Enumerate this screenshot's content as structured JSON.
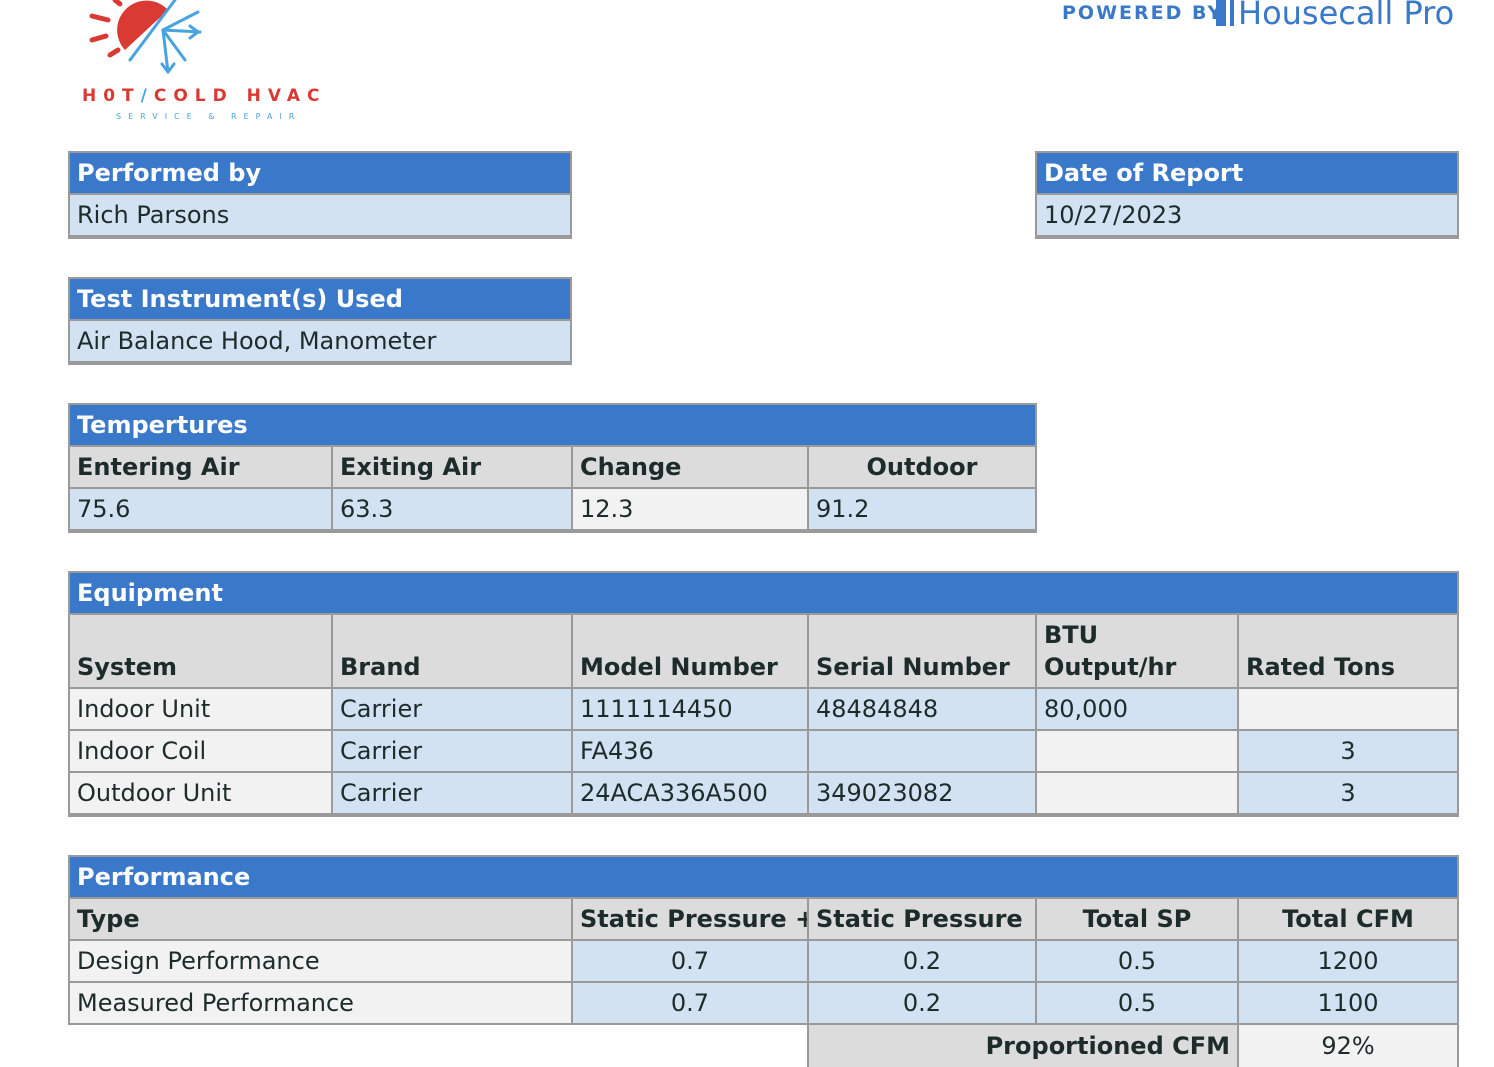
{
  "logo": {
    "name": "H0T/COLD HVAC",
    "name_a": "H0T",
    "slash": "/",
    "name_b": "COLD HVAC",
    "tagline": "SERVICE & REPAIR",
    "colors": {
      "hot": "#d93a33",
      "cold": "#4aa3e0"
    }
  },
  "powered": {
    "label": "POWERED BY",
    "brand": "Housecall Pro",
    "color": "#3a78c9"
  },
  "colors": {
    "header": "#3a78c9",
    "value": "#d3e2f2",
    "label": "#dcdcdc",
    "light": "#f2f2f2"
  },
  "performed_by": {
    "title": "Performed by",
    "value": "Rich Parsons"
  },
  "date_of_report": {
    "title": "Date of Report",
    "value": "10/27/2023"
  },
  "instruments": {
    "title": "Test Instrument(s) Used",
    "value": "Air Balance Hood, Manometer"
  },
  "temperatures": {
    "title": "Tempertures",
    "headers": [
      "Entering Air",
      "Exiting Air",
      "Change",
      "Outdoor"
    ],
    "values": [
      "75.6",
      "63.3",
      "12.3",
      "91.2"
    ]
  },
  "equipment": {
    "title": "Equipment",
    "headers": [
      "System",
      "Brand",
      "Model Number",
      "Serial Number",
      "BTU\nOutput/hr",
      "Rated Tons"
    ],
    "rows": [
      [
        "Indoor Unit",
        "Carrier",
        "1111114450",
        "48484848",
        "80,000",
        ""
      ],
      [
        "Indoor Coil",
        "Carrier",
        "FA436",
        "",
        "",
        "3"
      ],
      [
        "Outdoor Unit",
        "Carrier",
        "24ACA336A500",
        "349023082",
        "",
        "3"
      ]
    ]
  },
  "performance": {
    "title": "Performance",
    "headers": [
      "Type",
      "Static Pressure +",
      "Static Pressure",
      "Total SP",
      "Total CFM"
    ],
    "rows": [
      [
        "Design Performance",
        "0.7",
        "0.2",
        "0.5",
        "1200"
      ],
      [
        "Measured Performance",
        "0.7",
        "0.2",
        "0.5",
        "1100"
      ]
    ],
    "proportioned_label": "Proportioned CFM",
    "proportioned_value": "92%"
  }
}
